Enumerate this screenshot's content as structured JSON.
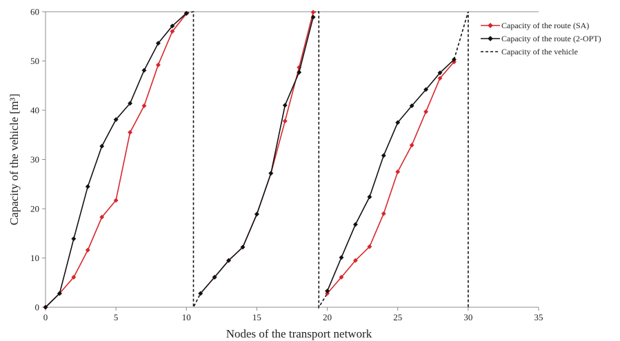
{
  "colors": {
    "sa": "#d7262b",
    "opt": "#111111",
    "vehicle": "#111111",
    "axis": "#8c8c8c",
    "text": "#222222"
  },
  "chart_data": {
    "type": "line",
    "title": "",
    "xlabel": "Nodes of the transport network",
    "ylabel": "Capacity of the vehicle [m³]",
    "xlim": [
      0,
      35
    ],
    "ylim": [
      0,
      60
    ],
    "xticks": [
      0,
      5,
      10,
      15,
      20,
      25,
      30,
      35
    ],
    "yticks": [
      0,
      10,
      20,
      30,
      40,
      50,
      60
    ],
    "grid": false,
    "legend_position": "top-right",
    "series": [
      {
        "name": "Capacity of the route (SA)",
        "key": "sa",
        "style": "solid",
        "marker": "diamond",
        "segments": [
          [
            [
              0,
              0
            ],
            [
              1,
              2.8
            ],
            [
              2,
              6.1
            ],
            [
              3,
              11.6
            ],
            [
              4,
              18.3
            ],
            [
              5,
              21.7
            ],
            [
              6,
              35.5
            ],
            [
              7,
              40.9
            ],
            [
              8,
              49.2
            ],
            [
              9,
              56.0
            ],
            [
              10,
              59.6
            ]
          ],
          [
            [
              11,
              2.8
            ],
            [
              12,
              6.1
            ],
            [
              13,
              9.5
            ],
            [
              14,
              12.2
            ],
            [
              15,
              18.9
            ],
            [
              16,
              27.2
            ],
            [
              17,
              37.8
            ],
            [
              18,
              48.7
            ],
            [
              19,
              59.9
            ]
          ],
          [
            [
              20,
              2.8
            ],
            [
              21,
              6.1
            ],
            [
              22,
              9.5
            ],
            [
              23,
              12.3
            ],
            [
              24,
              19.0
            ],
            [
              25,
              27.5
            ],
            [
              26,
              32.9
            ],
            [
              27,
              39.7
            ],
            [
              28,
              46.5
            ],
            [
              29,
              49.8
            ]
          ]
        ]
      },
      {
        "name": "Capacity of the route (2-OPT)",
        "key": "opt",
        "style": "solid",
        "marker": "diamond",
        "segments": [
          [
            [
              0,
              0
            ],
            [
              1,
              2.8
            ],
            [
              2,
              13.9
            ],
            [
              3,
              24.5
            ],
            [
              4,
              32.7
            ],
            [
              5,
              38.1
            ],
            [
              6,
              41.4
            ],
            [
              7,
              48.1
            ],
            [
              8,
              53.6
            ],
            [
              9,
              57.1
            ],
            [
              10,
              59.7
            ]
          ],
          [
            [
              11,
              2.8
            ],
            [
              12,
              6.1
            ],
            [
              13,
              9.5
            ],
            [
              14,
              12.2
            ],
            [
              15,
              18.9
            ],
            [
              16,
              27.2
            ],
            [
              17,
              41.0
            ],
            [
              18,
              47.7
            ],
            [
              19,
              58.9
            ]
          ],
          [
            [
              20,
              3.3
            ],
            [
              21,
              10.1
            ],
            [
              22,
              16.8
            ],
            [
              23,
              22.4
            ],
            [
              24,
              30.8
            ],
            [
              25,
              37.5
            ],
            [
              26,
              40.9
            ],
            [
              27,
              44.2
            ],
            [
              28,
              47.6
            ],
            [
              29,
              50.3
            ]
          ]
        ]
      },
      {
        "name": "Capacity of the vehicle",
        "key": "vehicle",
        "style": "dashed",
        "marker": "none",
        "segments": [
          [
            [
              10,
              59.7
            ],
            [
              10.5,
              60
            ],
            [
              10.5,
              0
            ],
            [
              11,
              2.8
            ]
          ],
          [
            [
              19,
              59.9
            ],
            [
              19.4,
              60
            ],
            [
              19.4,
              0
            ],
            [
              20,
              2.8
            ]
          ],
          [
            [
              29,
              50.3
            ],
            [
              30,
              60
            ],
            [
              30,
              0
            ]
          ]
        ]
      }
    ]
  }
}
